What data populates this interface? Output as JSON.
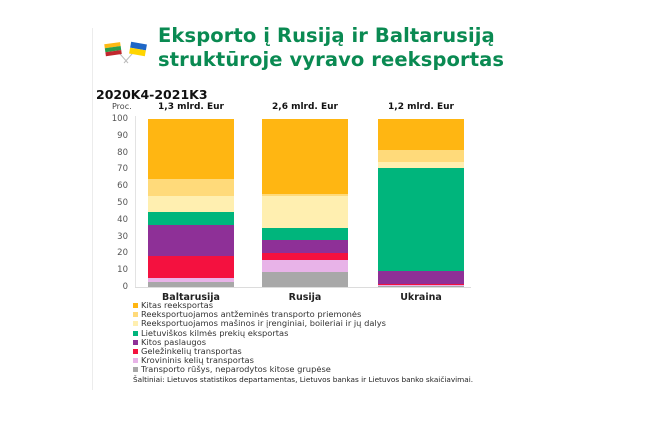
{
  "header": {
    "title_line1": "Eksporto į Rusiją ir Baltarusiją",
    "title_line2": "struktūroje vyravo reeksportas",
    "flags_icon": "lithuania-ukraine-flags-icon",
    "title_color": "#0a8a52"
  },
  "chart_data": {
    "type": "bar",
    "stacked": true,
    "percent": true,
    "title": "Eksporto į Rusiją ir Baltarusiją struktūroje vyravo reeksportas",
    "subtitle": "2020K4-2021K3",
    "xlabel": "",
    "ylabel": "Proc.",
    "ylim": [
      0,
      100
    ],
    "yticks": [
      0,
      10,
      20,
      30,
      40,
      50,
      60,
      70,
      80,
      90,
      100
    ],
    "grid": false,
    "legend_position": "bottom",
    "categories": [
      "Baltarusija",
      "Rusija",
      "Ukraina"
    ],
    "bar_totals": [
      "1,3 mlrd. Eur",
      "2,6 mlrd. Eur",
      "1,2 mlrd. Eur"
    ],
    "series": [
      {
        "name": "Kitas reeksportas",
        "color": "#ffb612",
        "values": [
          35.5,
          44.5,
          18.5
        ]
      },
      {
        "name": "Reeksportuojamos antžeminės transporto priemonės",
        "color": "#ffda7a",
        "values": [
          10.5,
          1.5,
          7.0
        ]
      },
      {
        "name": "Reeksportuojamos mašinos ir įrenginiai, boileriai ir jų dalys",
        "color": "#ffefb0",
        "values": [
          9.5,
          19.0,
          3.5
        ]
      },
      {
        "name": "Lietuviškos kilmės prekių eksportas",
        "color": "#00b57c",
        "values": [
          7.5,
          7.0,
          61.5
        ]
      },
      {
        "name": "Kitos paslaugos",
        "color": "#8e3097",
        "values": [
          18.5,
          8.0,
          7.5
        ]
      },
      {
        "name": "Geležinkelių transportas",
        "color": "#f4113f",
        "values": [
          13.0,
          4.0,
          0.5
        ]
      },
      {
        "name": "Krovininis kelių transportas",
        "color": "#e8b3e8",
        "values": [
          2.5,
          7.0,
          1.0
        ]
      },
      {
        "name": "Transporto rūšys, neparodytos kitose grupėse",
        "color": "#a8a8a8",
        "values": [
          3.0,
          9.0,
          0.5
        ]
      }
    ]
  },
  "source": "Šaltiniai: Lietuvos statistikos departamentas, Lietuvos bankas ir Lietuvos banko skaičiavimai."
}
